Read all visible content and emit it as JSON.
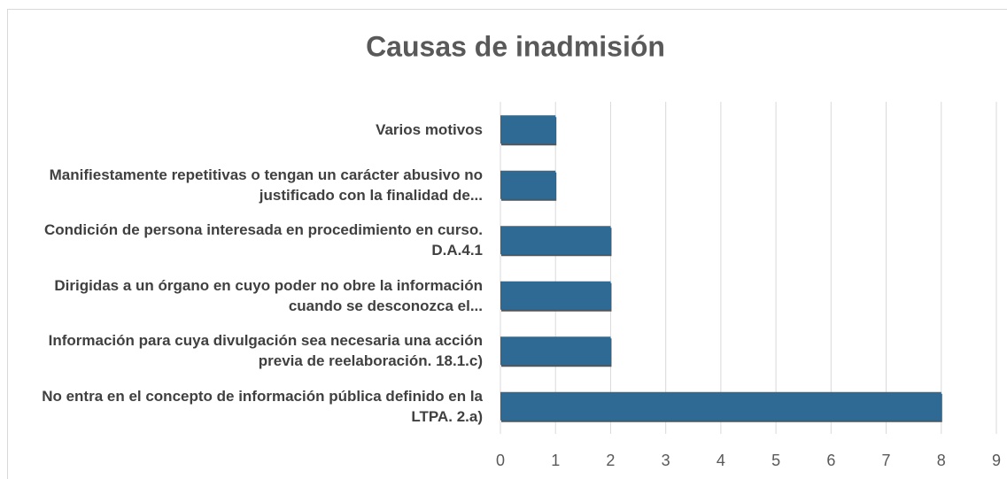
{
  "chart_data": {
    "type": "bar",
    "orientation": "horizontal",
    "title": "Causas de inadmisión",
    "categories": [
      "Varios motivos",
      "Manifiestamente repetitivas o tengan un carácter abusivo no justificado con la finalidad de...",
      "Condición de persona interesada en procedimiento en curso. D.A.4.1",
      "Dirigidas a un órgano en cuyo poder no obre la información cuando se desconozca el...",
      "Información para cuya divulgación sea necesaria una acción previa de reelaboración. 18.1.c)",
      "No entra en el concepto de información pública definido en la LTPA. 2.a)"
    ],
    "values": [
      1,
      1,
      2,
      2,
      2,
      8
    ],
    "color": "#2f6a94",
    "xlim": [
      0,
      9
    ],
    "xticks": [
      0,
      1,
      2,
      3,
      4,
      5,
      6,
      7,
      8,
      9
    ],
    "grid": true
  }
}
